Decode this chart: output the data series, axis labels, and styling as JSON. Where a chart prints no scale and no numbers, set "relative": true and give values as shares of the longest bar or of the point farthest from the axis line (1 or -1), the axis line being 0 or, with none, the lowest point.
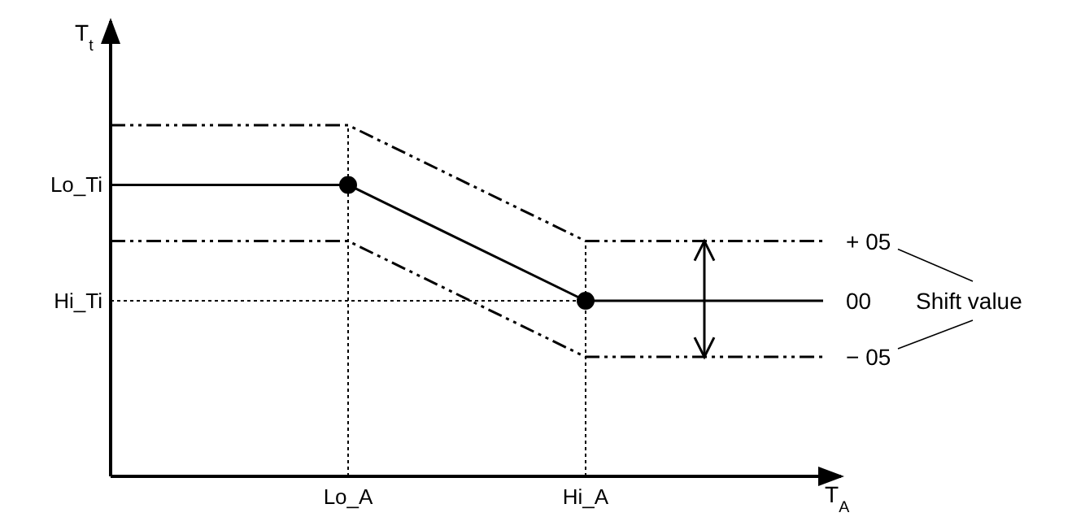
{
  "chart_data": {
    "type": "line",
    "relative": true,
    "xlabel": "T$_{A}$",
    "ylabel": "T$_{t}$",
    "categories": [
      null,
      "Lo_A",
      "Hi_A",
      null
    ],
    "series": [
      {
        "name": "+ 05",
        "color": "#000000",
        "values": [
          1,
          1,
          0.67,
          0.67
        ],
        "line_style": "dashed",
        "marker": "none"
      },
      {
        "name": "00",
        "color": "#000000",
        "values": [
          0.83,
          0.83,
          0.5,
          0.5
        ],
        "line_style": "solid",
        "marker": "none"
      },
      {
        "name": "− 05",
        "color": "#000000",
        "values": [
          0.67,
          0.67,
          0.34,
          0.34
        ],
        "line_style": "dashed",
        "marker": "none"
      },
      {
        "type": "scatter",
        "color": "#000000",
        "values": [
          null,
          0.83,
          0.5,
          null
        ],
        "marker": "circle"
      }
    ],
    "ref_lines": [
      {
        "axis": "y",
        "value": 0.5,
        "label": "Hi_Ti",
        "line_style": "dotted"
      },
      {
        "axis": "x",
        "value": "Lo_A",
        "line_style": "dotted"
      },
      {
        "axis": "x",
        "value": "Hi_A",
        "line_style": "dotted"
      }
    ],
    "annotations": [
      "Lo_Ti",
      "Shift value"
    ]
  }
}
